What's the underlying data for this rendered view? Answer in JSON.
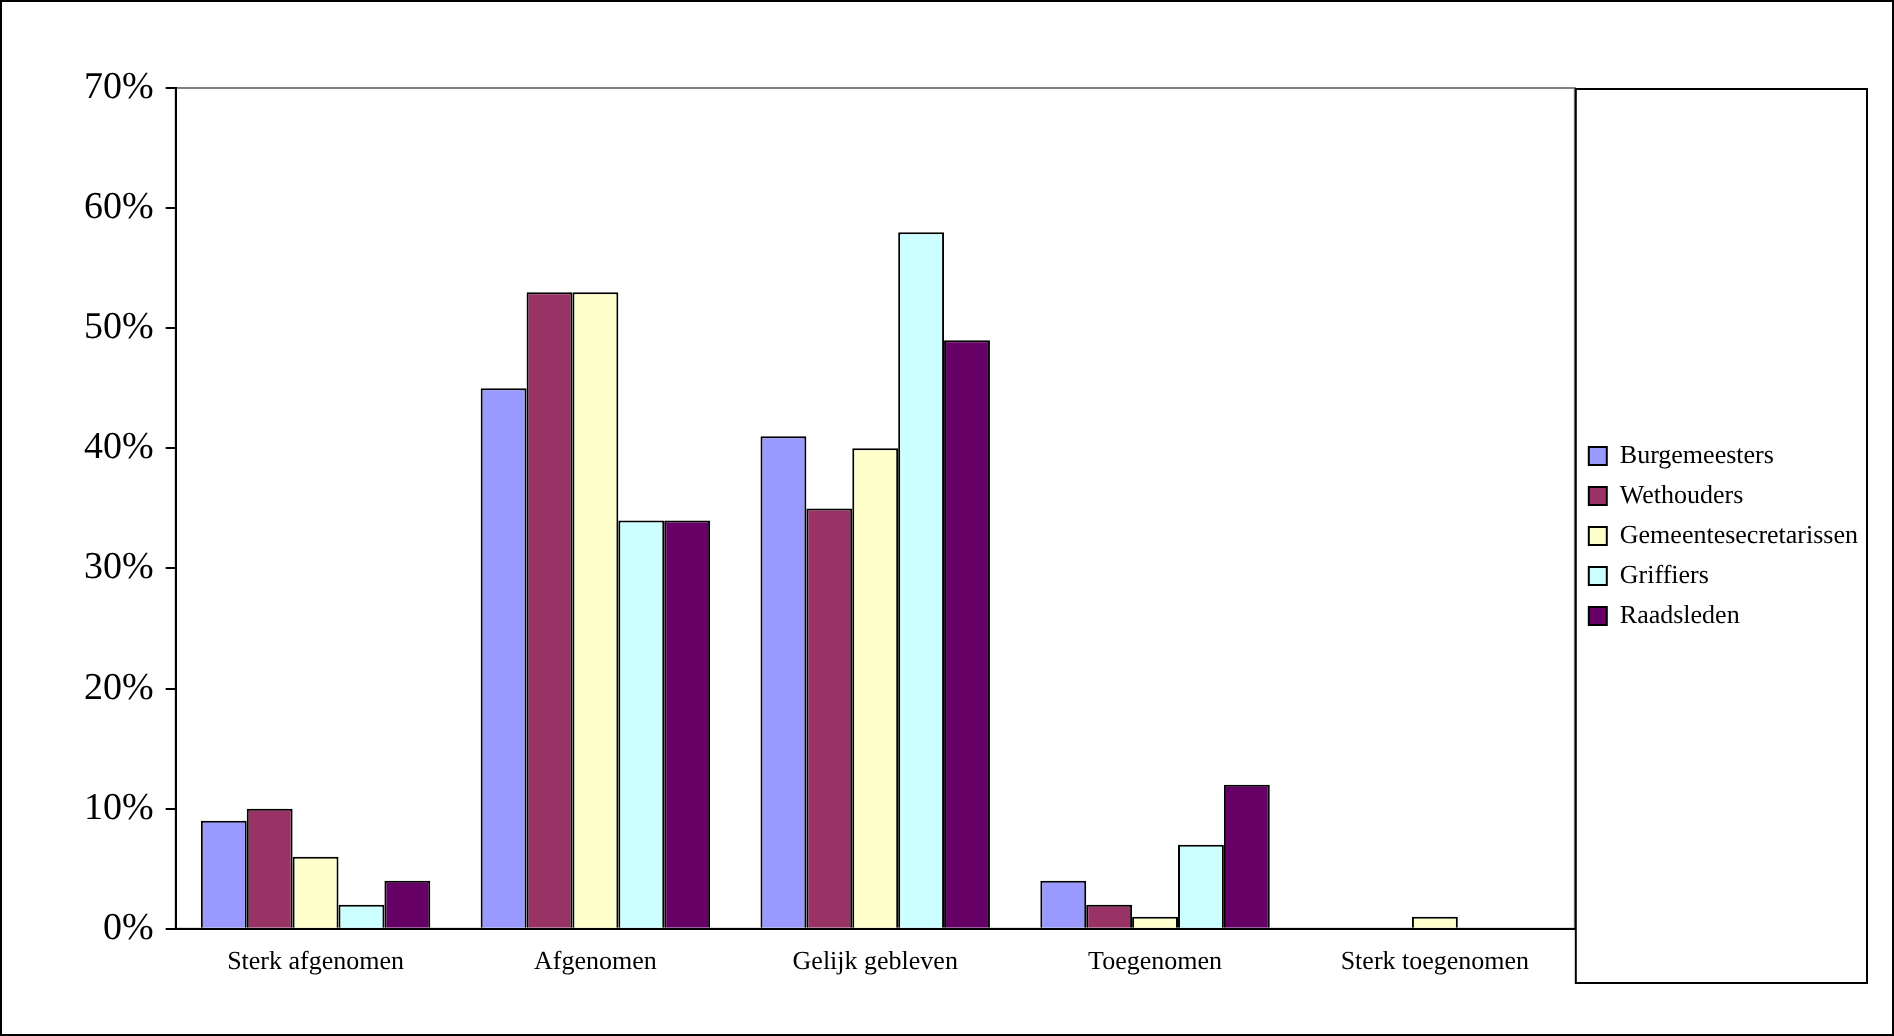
{
  "chart_data": {
    "type": "bar",
    "categories": [
      "Sterk afgenomen",
      "Afgenomen",
      "Gelijk gebleven",
      "Toegenomen",
      "Sterk toegenomen"
    ],
    "series": [
      {
        "name": "Burgemeesters",
        "color": "#9999ff",
        "values": [
          9,
          45,
          41,
          4,
          0
        ]
      },
      {
        "name": "Wethouders",
        "color": "#993366",
        "values": [
          10,
          53,
          35,
          2,
          0
        ]
      },
      {
        "name": "Gemeentesecretarissen",
        "color": "#ffffcc",
        "values": [
          6,
          53,
          40,
          1,
          1
        ]
      },
      {
        "name": "Griffiers",
        "color": "#ccffff",
        "values": [
          2,
          34,
          58,
          7,
          0
        ]
      },
      {
        "name": "Raadsleden",
        "color": "#660066",
        "values": [
          4,
          34,
          49,
          12,
          0
        ]
      }
    ],
    "ylim": [
      0,
      70
    ],
    "yticks": [
      {
        "value": 0,
        "label": "0%"
      },
      {
        "value": 10,
        "label": "10%"
      },
      {
        "value": 20,
        "label": "20%"
      },
      {
        "value": 30,
        "label": "30%"
      },
      {
        "value": 40,
        "label": "40%"
      },
      {
        "value": 50,
        "label": "50%"
      },
      {
        "value": 60,
        "label": "60%"
      },
      {
        "value": 70,
        "label": "70%"
      }
    ],
    "grid": false,
    "legend": "right"
  }
}
